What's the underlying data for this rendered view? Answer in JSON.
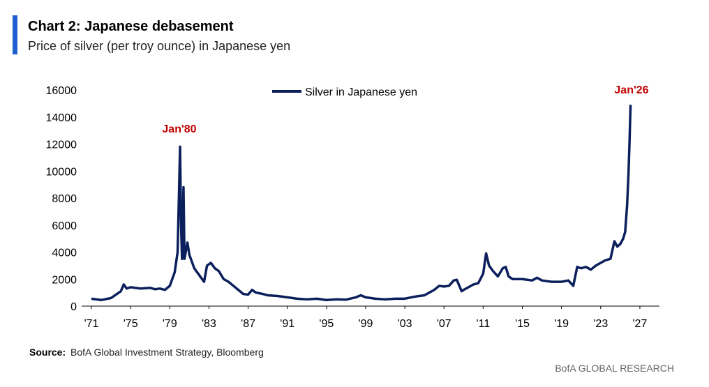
{
  "chart_data": {
    "type": "line",
    "title": "Chart 2: Japanese debasement",
    "subtitle": "Price of silver (per troy ounce) in Japanese yen",
    "source_label": "Source:",
    "source": "BofA Global Investment Strategy, Bloomberg",
    "footer": "BofA GLOBAL RESEARCH",
    "annotations": [
      "Jan'80",
      "Jan'26"
    ],
    "annotation_color": "#c00000",
    "legend": "top",
    "x": [
      1971,
      1972,
      1973,
      1974,
      1974.3,
      1974.6,
      1975,
      1976,
      1977,
      1977.5,
      1978,
      1978.5,
      1979,
      1979.5,
      1979.8,
      1980.05,
      1980.15,
      1980.25,
      1980.4,
      1980.5,
      1980.8,
      1981,
      1981.5,
      1982,
      1982.5,
      1982.8,
      1983.2,
      1983.6,
      1984,
      1984.5,
      1985,
      1985.5,
      1986,
      1986.5,
      1987,
      1987.4,
      1987.8,
      1988.5,
      1989,
      1990,
      1991,
      1992,
      1993,
      1994,
      1995,
      1996,
      1997,
      1998,
      1998.5,
      1999,
      2000,
      2001,
      2002,
      2003,
      2004,
      2005,
      2006,
      2006.5,
      2007,
      2007.5,
      2008,
      2008.3,
      2008.8,
      2009,
      2009.5,
      2010,
      2010.5,
      2011,
      2011.3,
      2011.6,
      2012,
      2012.5,
      2013,
      2013.3,
      2013.6,
      2014,
      2015,
      2016,
      2016.5,
      2017,
      2018,
      2019,
      2019.7,
      2020.2,
      2020.6,
      2021,
      2021.5,
      2022,
      2022.5,
      2023,
      2023.5,
      2024,
      2024.4,
      2024.7,
      2025,
      2025.3,
      2025.5,
      2025.7,
      2025.85,
      2025.95,
      2026.05
    ],
    "series": [
      {
        "name": "Silver in Japanese yen",
        "color": "#0b1f5c",
        "values": [
          550,
          450,
          600,
          1100,
          1600,
          1300,
          1400,
          1300,
          1350,
          1250,
          1300,
          1200,
          1500,
          2500,
          4000,
          11800,
          6000,
          3500,
          8800,
          3500,
          4700,
          3800,
          2800,
          2300,
          1800,
          3000,
          3200,
          2800,
          2600,
          2000,
          1800,
          1500,
          1200,
          900,
          850,
          1200,
          1000,
          900,
          800,
          750,
          650,
          550,
          500,
          550,
          450,
          500,
          480,
          650,
          800,
          650,
          550,
          500,
          550,
          550,
          700,
          800,
          1200,
          1500,
          1450,
          1500,
          1900,
          1950,
          1100,
          1200,
          1400,
          1600,
          1700,
          2400,
          3900,
          3000,
          2600,
          2200,
          2800,
          2900,
          2200,
          2000,
          2000,
          1900,
          2100,
          1900,
          1800,
          1800,
          1900,
          1500,
          2900,
          2800,
          2900,
          2700,
          3000,
          3200,
          3400,
          3500,
          4800,
          4400,
          4600,
          5000,
          5500,
          7500,
          10000,
          12300,
          14900
        ]
      }
    ],
    "xlim": [
      1970,
      2029
    ],
    "xticks": [
      {
        "value": 1971,
        "label": "'71"
      },
      {
        "value": 1975,
        "label": "'75"
      },
      {
        "value": 1979,
        "label": "'79"
      },
      {
        "value": 1983,
        "label": "'83"
      },
      {
        "value": 1987,
        "label": "'87"
      },
      {
        "value": 1991,
        "label": "'91"
      },
      {
        "value": 1995,
        "label": "'95"
      },
      {
        "value": 1999,
        "label": "'99"
      },
      {
        "value": 2003,
        "label": "'03"
      },
      {
        "value": 2007,
        "label": "'07"
      },
      {
        "value": 2011,
        "label": "'11"
      },
      {
        "value": 2015,
        "label": "'15"
      },
      {
        "value": 2019,
        "label": "'19"
      },
      {
        "value": 2023,
        "label": "'23"
      },
      {
        "value": 2027,
        "label": "'27"
      }
    ],
    "ylim": [
      0,
      16000
    ],
    "yticks": [
      0,
      2000,
      4000,
      6000,
      8000,
      10000,
      12000,
      14000,
      16000
    ],
    "grid": false
  }
}
